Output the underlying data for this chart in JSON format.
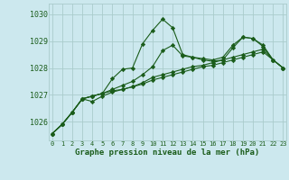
{
  "xlabel": "Graphe pression niveau de la mer (hPa)",
  "background_color": "#cce8ee",
  "grid_color": "#aacccc",
  "line_color": "#1a5c1a",
  "ylim": [
    1025.3,
    1030.4
  ],
  "xlim": [
    -0.3,
    23.3
  ],
  "yticks": [
    1026,
    1027,
    1028,
    1029,
    1030
  ],
  "xticks": [
    0,
    1,
    2,
    3,
    4,
    5,
    6,
    7,
    8,
    9,
    10,
    11,
    12,
    13,
    14,
    15,
    16,
    17,
    18,
    19,
    20,
    21,
    22,
    23
  ],
  "series": [
    [
      1025.55,
      1025.9,
      1026.35,
      1026.85,
      1026.95,
      1027.05,
      1027.6,
      1027.95,
      1028.0,
      1028.9,
      1029.4,
      1029.82,
      1029.5,
      1028.5,
      1028.4,
      1028.35,
      1028.3,
      1028.4,
      1028.85,
      1029.15,
      1029.1,
      1028.85,
      1028.3,
      1028.0
    ],
    [
      1025.55,
      1025.9,
      1026.35,
      1026.85,
      1026.95,
      1027.05,
      1027.15,
      1027.2,
      1027.3,
      1027.45,
      1027.65,
      1027.75,
      1027.85,
      1027.95,
      1028.05,
      1028.1,
      1028.2,
      1028.3,
      1028.4,
      1028.5,
      1028.6,
      1028.7,
      1028.3,
      1028.0
    ],
    [
      1025.55,
      1025.9,
      1026.35,
      1026.85,
      1026.75,
      1026.95,
      1027.1,
      1027.2,
      1027.3,
      1027.4,
      1027.55,
      1027.65,
      1027.75,
      1027.85,
      1027.95,
      1028.05,
      1028.1,
      1028.2,
      1028.3,
      1028.4,
      1028.5,
      1028.6,
      1028.3,
      1028.0
    ],
    [
      1025.55,
      1025.9,
      1026.35,
      1026.85,
      1026.95,
      1027.05,
      1027.2,
      1027.35,
      1027.5,
      1027.75,
      1028.05,
      1028.65,
      1028.85,
      1028.45,
      1028.4,
      1028.3,
      1028.25,
      1028.3,
      1028.75,
      1029.15,
      1029.1,
      1028.8,
      1028.3,
      1028.0
    ]
  ]
}
